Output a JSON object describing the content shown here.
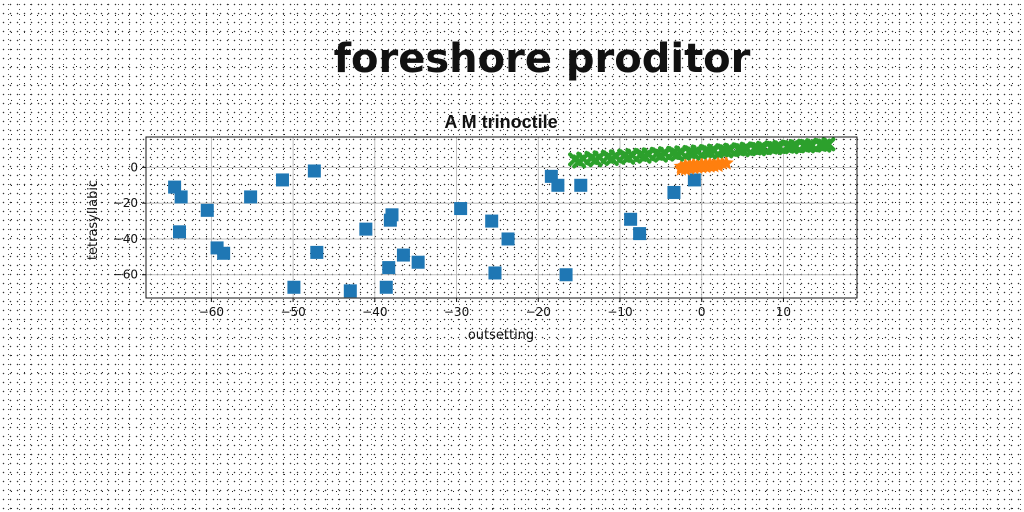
{
  "figure_title": "foreshore proditor",
  "chart_data": {
    "type": "scatter",
    "title": "A M trinoctile",
    "xlabel": "outsetting",
    "ylabel": "tetrasyllabic",
    "xlim": [
      -68,
      19
    ],
    "ylim": [
      -73,
      17
    ],
    "xticks": [
      -60,
      -50,
      -40,
      -30,
      -20,
      -10,
      0,
      10
    ],
    "yticks": [
      0,
      -20,
      -40,
      -60
    ],
    "grid": true,
    "series": [
      {
        "color": "#1f77b4",
        "marker": "square",
        "points": [
          [
            -64.5,
            -11
          ],
          [
            -63.7,
            -16.5
          ],
          [
            -63.9,
            -36
          ],
          [
            -60.5,
            -24
          ],
          [
            -59.3,
            -45
          ],
          [
            -58.5,
            -48
          ],
          [
            -55.2,
            -16.5
          ],
          [
            -51.3,
            -7
          ],
          [
            -49.9,
            -67
          ],
          [
            -47.4,
            -2
          ],
          [
            -47.1,
            -47.5
          ],
          [
            -43,
            -69
          ],
          [
            -41.1,
            -34.5
          ],
          [
            -38.6,
            -67
          ],
          [
            -38.3,
            -56
          ],
          [
            -38.1,
            -29.5
          ],
          [
            -37.9,
            -26.5
          ],
          [
            -36.5,
            -49
          ],
          [
            -34.7,
            -53
          ],
          [
            -29.5,
            -23
          ],
          [
            -25.7,
            -30
          ],
          [
            -25.3,
            -59
          ],
          [
            -23.7,
            -40
          ],
          [
            -18.4,
            -5
          ],
          [
            -17.6,
            -10
          ],
          [
            -16.6,
            -60
          ],
          [
            -14.8,
            -10
          ],
          [
            -8.7,
            -29
          ],
          [
            -7.6,
            -37
          ],
          [
            -3.4,
            -14
          ],
          [
            -0.9,
            -7
          ]
        ]
      },
      {
        "color": "#ff7f0e",
        "marker": "star",
        "points": [
          [
            -2.5,
            0.5
          ],
          [
            -2.0,
            1.0
          ],
          [
            -1.5,
            1.5
          ],
          [
            -1.0,
            1.6
          ],
          [
            -0.5,
            1.7
          ],
          [
            0.0,
            1.8
          ],
          [
            0.5,
            1.9
          ],
          [
            1.0,
            2.0
          ],
          [
            1.5,
            2.1
          ],
          [
            2.0,
            2.2
          ],
          [
            2.5,
            2.3
          ],
          [
            3.0,
            2.4
          ],
          [
            -2.5,
            -1.0
          ],
          [
            -2.0,
            -1.0
          ],
          [
            -1.5,
            -0.5
          ],
          [
            -1.0,
            -0.2
          ],
          [
            -0.5,
            0.0
          ],
          [
            0.0,
            0.2
          ],
          [
            0.5,
            0.4
          ],
          [
            1.0,
            0.6
          ],
          [
            1.5,
            0.8
          ],
          [
            2.0,
            1.0
          ]
        ]
      },
      {
        "color": "#2ca02c",
        "marker": "x",
        "points": [
          [
            -15.5,
            4.5
          ],
          [
            -14.5,
            4.9
          ],
          [
            -13.5,
            5.3
          ],
          [
            -12.5,
            5.6
          ],
          [
            -11.5,
            5.9
          ],
          [
            -10.5,
            6.2
          ],
          [
            -9.5,
            6.5
          ],
          [
            -8.5,
            6.8
          ],
          [
            -7.5,
            7.0
          ],
          [
            -6.5,
            7.3
          ],
          [
            -5.5,
            7.6
          ],
          [
            -4.5,
            7.9
          ],
          [
            -3.5,
            8.1
          ],
          [
            -2.5,
            8.4
          ],
          [
            -1.5,
            8.6
          ],
          [
            -0.5,
            8.9
          ],
          [
            0.5,
            9.1
          ],
          [
            1.5,
            9.4
          ],
          [
            2.5,
            9.6
          ],
          [
            3.5,
            9.9
          ],
          [
            4.5,
            10.1
          ],
          [
            5.5,
            10.4
          ],
          [
            6.5,
            10.6
          ],
          [
            7.5,
            10.9
          ],
          [
            8.5,
            11.1
          ],
          [
            9.5,
            11.4
          ],
          [
            10.5,
            11.6
          ],
          [
            11.5,
            11.9
          ],
          [
            12.5,
            12.1
          ],
          [
            13.5,
            12.4
          ],
          [
            14.5,
            12.6
          ],
          [
            15.5,
            12.9
          ],
          [
            -15.0,
            3.3
          ],
          [
            -13.0,
            4.0
          ],
          [
            -11.0,
            4.7
          ],
          [
            -9.0,
            5.4
          ],
          [
            -7.0,
            6.0
          ],
          [
            -5.0,
            6.6
          ],
          [
            -3.0,
            7.2
          ],
          [
            -1.0,
            7.8
          ],
          [
            1.0,
            8.4
          ],
          [
            3.0,
            9.0
          ],
          [
            5.0,
            9.6
          ],
          [
            7.0,
            10.2
          ],
          [
            9.0,
            10.8
          ],
          [
            11.0,
            11.3
          ],
          [
            13.0,
            11.8
          ],
          [
            15.0,
            12.2
          ]
        ]
      }
    ]
  }
}
